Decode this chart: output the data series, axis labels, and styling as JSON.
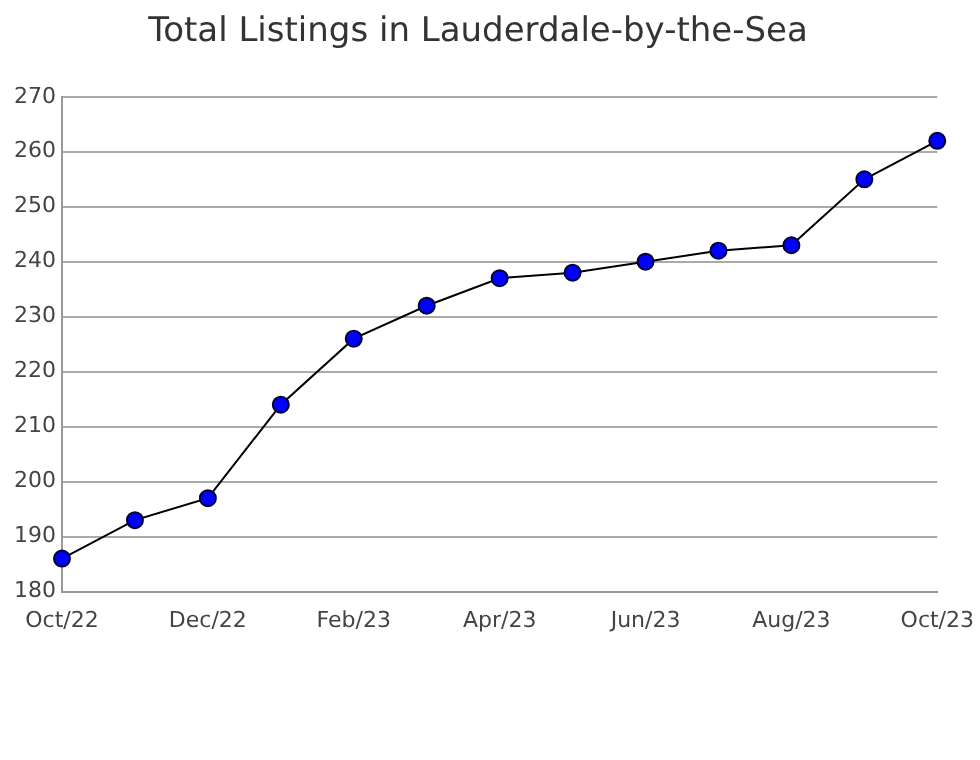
{
  "chart_data": {
    "type": "line",
    "title": "Total Listings in Lauderdale-by-the-Sea",
    "categories": [
      "Oct/22",
      null,
      "Dec/22",
      null,
      "Feb/23",
      null,
      "Apr/23",
      null,
      "Jun/23",
      null,
      "Aug/23",
      null,
      "Oct/23"
    ],
    "series": [
      {
        "color": "#0000ff",
        "values": [
          186,
          193,
          197,
          214,
          226,
          232,
          237,
          238,
          240,
          242,
          243,
          255,
          262
        ]
      }
    ],
    "ylim": [
      180,
      270
    ],
    "yticks": [
      180,
      190,
      200,
      210,
      220,
      230,
      240,
      250,
      260,
      270
    ],
    "grid": "y",
    "legend": false,
    "marker": "circle",
    "line_style": "solid"
  }
}
